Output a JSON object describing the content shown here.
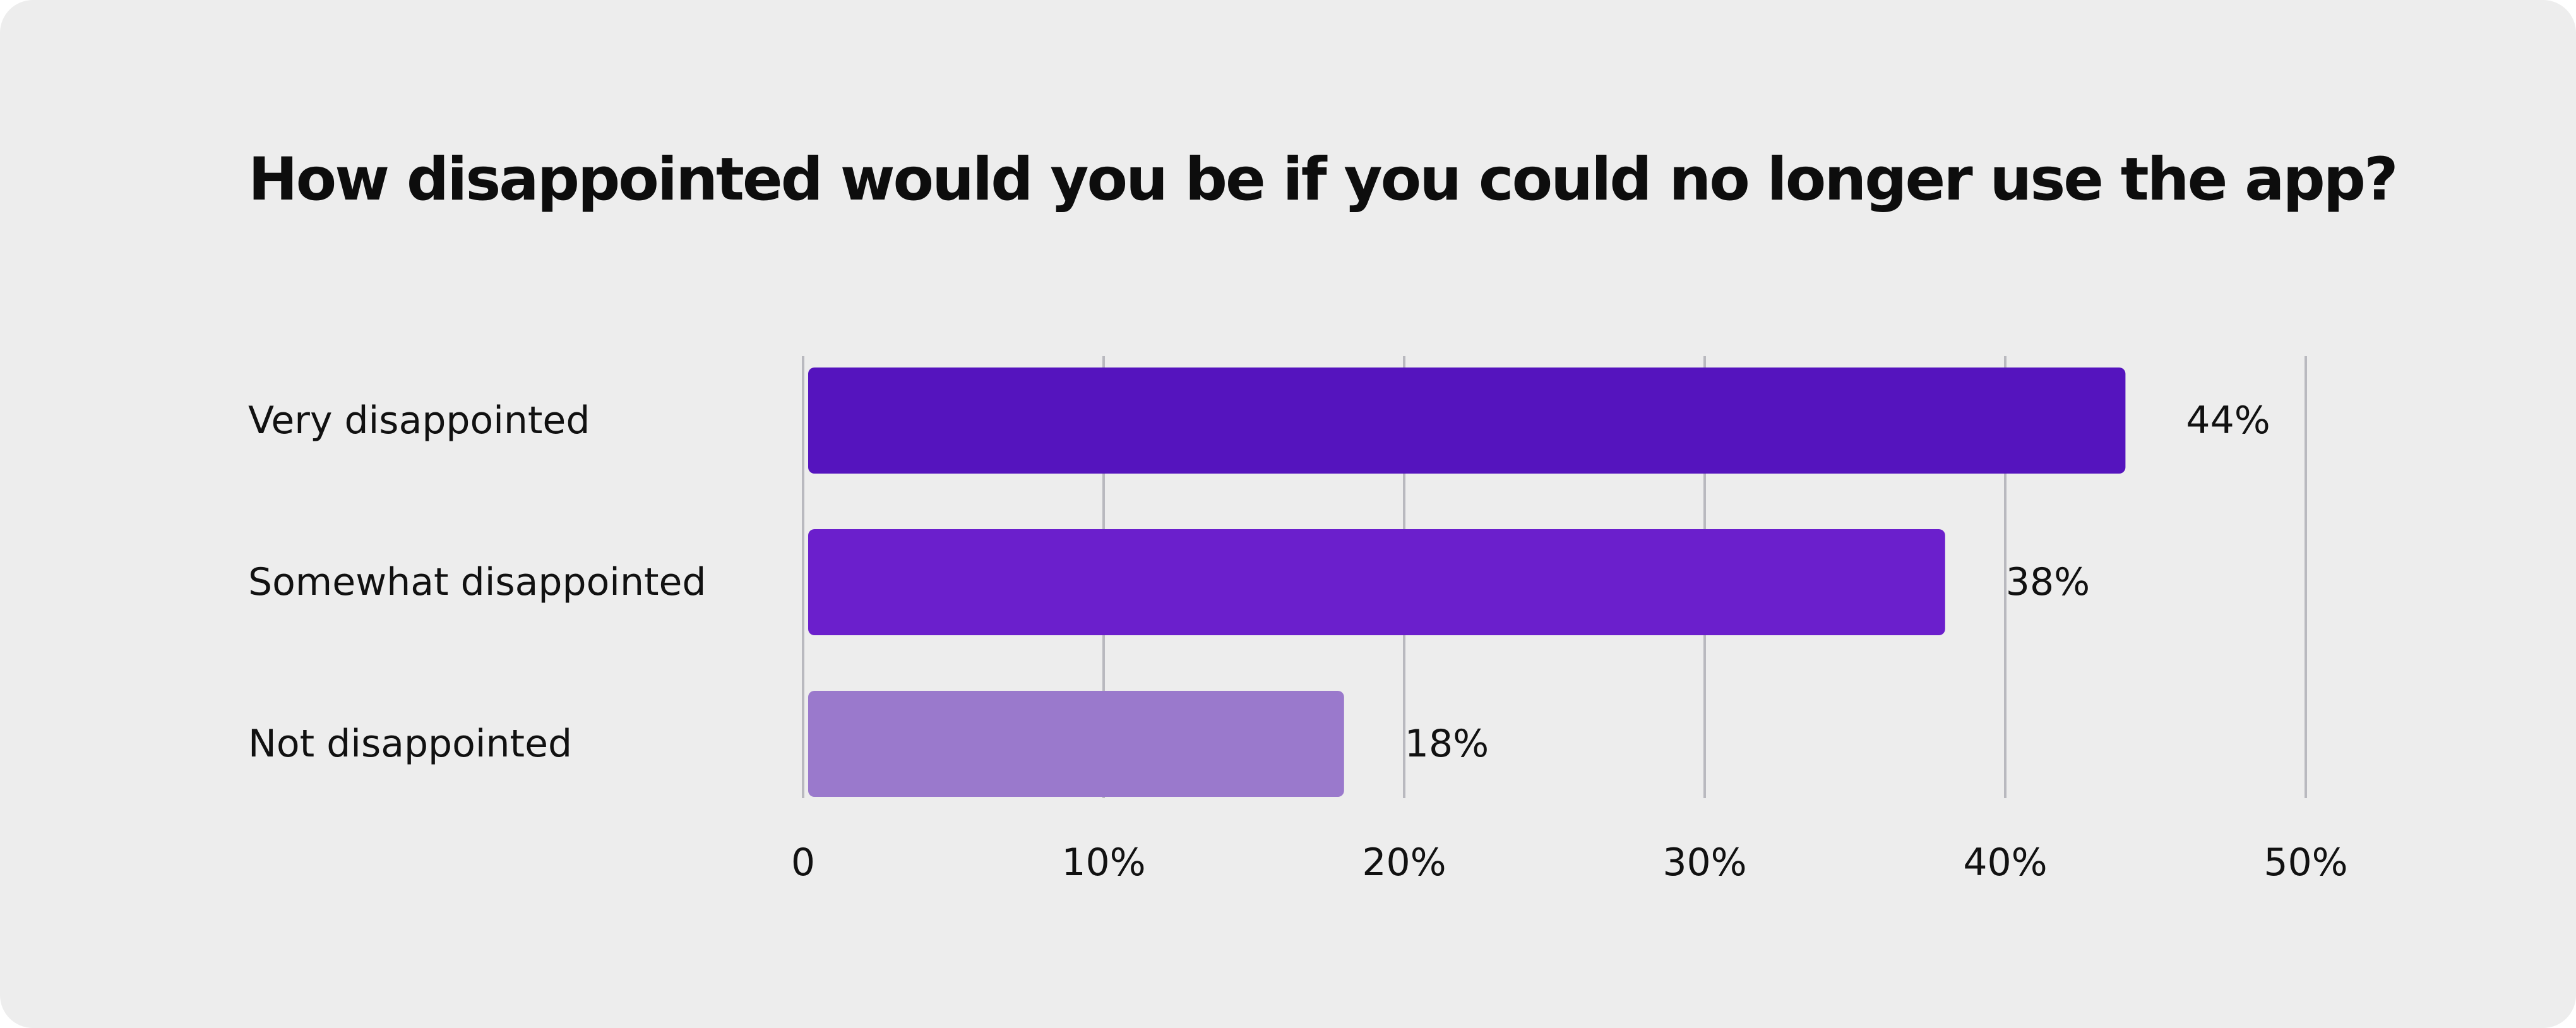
{
  "chart_data": {
    "type": "bar",
    "orientation": "horizontal",
    "title": "How disappointed would you be if you could no longer use the app?",
    "categories": [
      "Very disappointed",
      "Somewhat disappointed",
      "Not disappointed"
    ],
    "values": [
      44,
      38,
      18
    ],
    "value_labels": [
      "44%",
      "38%",
      "18%"
    ],
    "colors": [
      "#5514be",
      "#6b1fcc",
      "#9a79cc"
    ],
    "xlim": [
      0,
      50
    ],
    "xticks": [
      0,
      10,
      20,
      30,
      40,
      50
    ],
    "xtick_labels": [
      "0",
      "10%",
      "20%",
      "30%",
      "40%",
      "50%"
    ],
    "xlabel": "",
    "ylabel": "",
    "grid": true,
    "legend": "none"
  },
  "theme": {
    "background": "#ededed",
    "text_color": "#111111",
    "grid_color": "#b9b9bf"
  }
}
